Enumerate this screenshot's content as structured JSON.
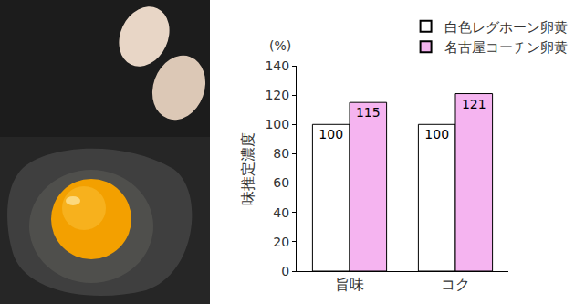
{
  "chart_data": {
    "type": "bar",
    "categories": [
      "旨味",
      "コク"
    ],
    "series": [
      {
        "name": "白色レグホーン卵黄",
        "color": "#ffffff",
        "values": [
          100,
          100
        ]
      },
      {
        "name": "名古屋コーチン卵黄",
        "color": "#f5b4f0",
        "values": [
          115,
          121
        ]
      }
    ],
    "ylabel": "味推定濃度",
    "annotations": [
      "(%)"
    ],
    "ylim": [
      0,
      140
    ],
    "yticks": [
      0,
      20,
      40,
      60,
      80,
      100,
      120,
      140
    ],
    "data_labels": true,
    "legend": "top right",
    "grid": false
  }
}
